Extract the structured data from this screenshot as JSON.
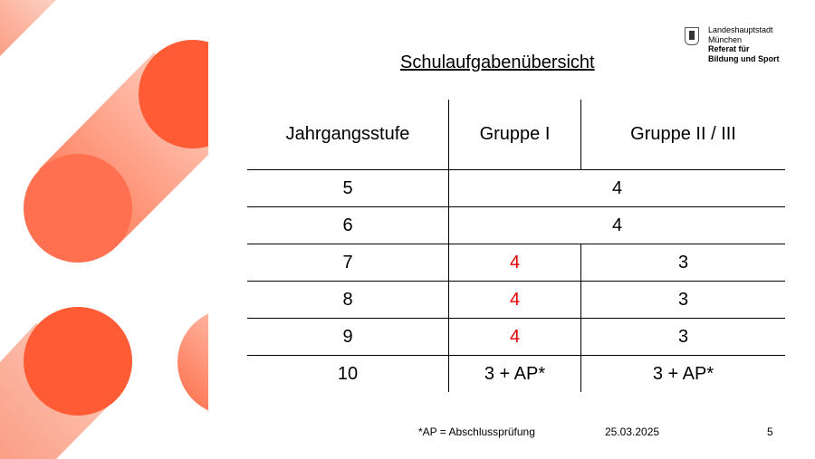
{
  "logo": {
    "line1": "Landeshauptstadt",
    "line2": "München",
    "line3": "Referat für",
    "line4": "Bildung und Sport"
  },
  "title": "Schulaufgabenübersicht",
  "table": {
    "headers": [
      "Jahrgangsstufe",
      "Gruppe I",
      "Gruppe II / III"
    ],
    "merged_rows": [
      {
        "grade": "5",
        "value": "4"
      },
      {
        "grade": "6",
        "value": "4"
      }
    ],
    "rows": [
      {
        "grade": "7",
        "g1": "4",
        "g2": "3"
      },
      {
        "grade": "8",
        "g1": "4",
        "g2": "3"
      },
      {
        "grade": "9",
        "g1": "4",
        "g2": "3"
      },
      {
        "grade": "10",
        "g1": "3 + AP*",
        "g2": "3 + AP*"
      }
    ],
    "highlight_color": "#e00000"
  },
  "footer": {
    "note": "*AP = Abschlussprüfung",
    "date": "25.03.2025",
    "page": "5"
  },
  "colors": {
    "accent": "#ff5c35"
  }
}
